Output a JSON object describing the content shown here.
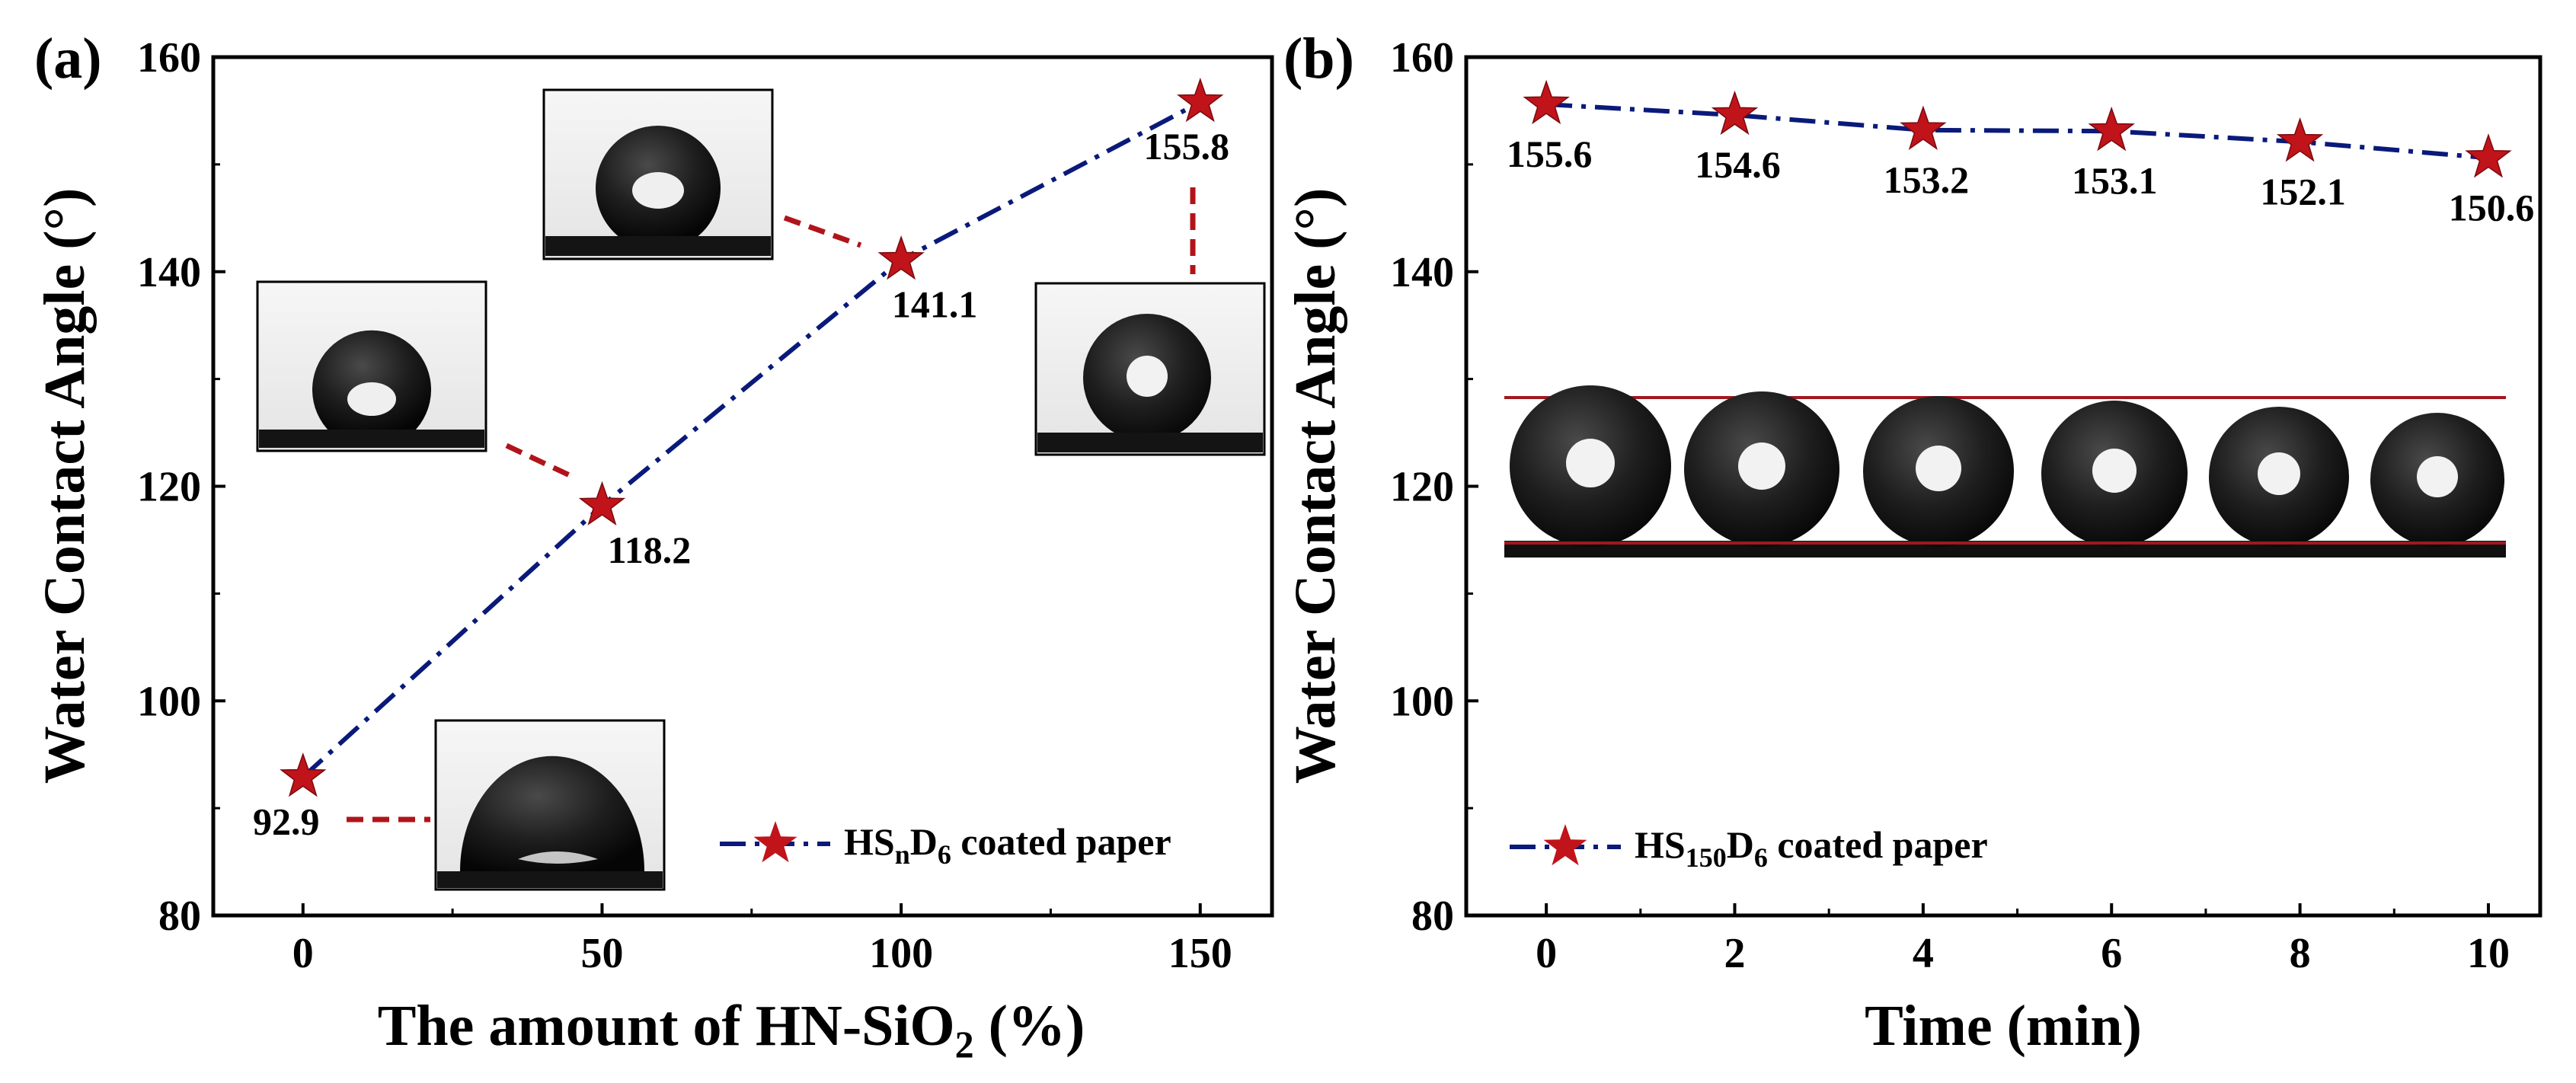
{
  "colors": {
    "line": "#0a1a7a",
    "marker": "#c0141a",
    "leader": "#b0141a",
    "droplet": "#1c1c1c",
    "guide_line": "#a01820"
  },
  "chart_data": [
    {
      "panel": "(a)",
      "type": "line",
      "xlabel_main": "The amount of HN-SiO",
      "xlabel_sub": "2",
      "xlabel_tail": " (%)",
      "ylabel": "Water Contact Angle (°)",
      "xlim": [
        -15,
        162
      ],
      "ylim": [
        80,
        160
      ],
      "xticks": [
        0,
        50,
        100,
        150
      ],
      "yticks": [
        80,
        100,
        120,
        140,
        160
      ],
      "series": [
        {
          "name": "HSnD6 coated paper",
          "legend_main": "HS",
          "legend_sub1": "n",
          "legend_mid": "D",
          "legend_sub2": "6",
          "legend_tail": " coated paper",
          "x": [
            0,
            50,
            100,
            150
          ],
          "values": [
            92.9,
            118.2,
            141.1,
            155.8
          ],
          "labels": [
            "92.9",
            "118.2",
            "141.1",
            "155.8"
          ]
        }
      ],
      "legend": "bottom-right",
      "insets": [
        "droplet image at 0%",
        "droplet image at 50%",
        "droplet image at 100%",
        "droplet image at 150%"
      ]
    },
    {
      "panel": "(b)",
      "type": "line",
      "xlabel": "Time (min)",
      "ylabel": "Water Contact Angle (°)",
      "xlim": [
        -0.85,
        10.55
      ],
      "ylim": [
        80,
        160
      ],
      "xticks": [
        0,
        2,
        4,
        6,
        8,
        10
      ],
      "yticks": [
        80,
        100,
        120,
        140,
        160
      ],
      "series": [
        {
          "name": "HS150D6 coated paper",
          "legend_main": "HS",
          "legend_sub1": "150",
          "legend_mid": "D",
          "legend_sub2": "6",
          "legend_tail": " coated paper",
          "x": [
            0,
            2,
            4,
            6,
            8,
            10
          ],
          "values": [
            155.6,
            154.6,
            153.2,
            153.1,
            152.1,
            150.6
          ],
          "labels": [
            "155.6",
            "154.6",
            "153.2",
            "153.1",
            "152.1",
            "150.6"
          ]
        }
      ],
      "legend": "bottom-left",
      "insets": [
        "six droplet images over time"
      ]
    }
  ]
}
